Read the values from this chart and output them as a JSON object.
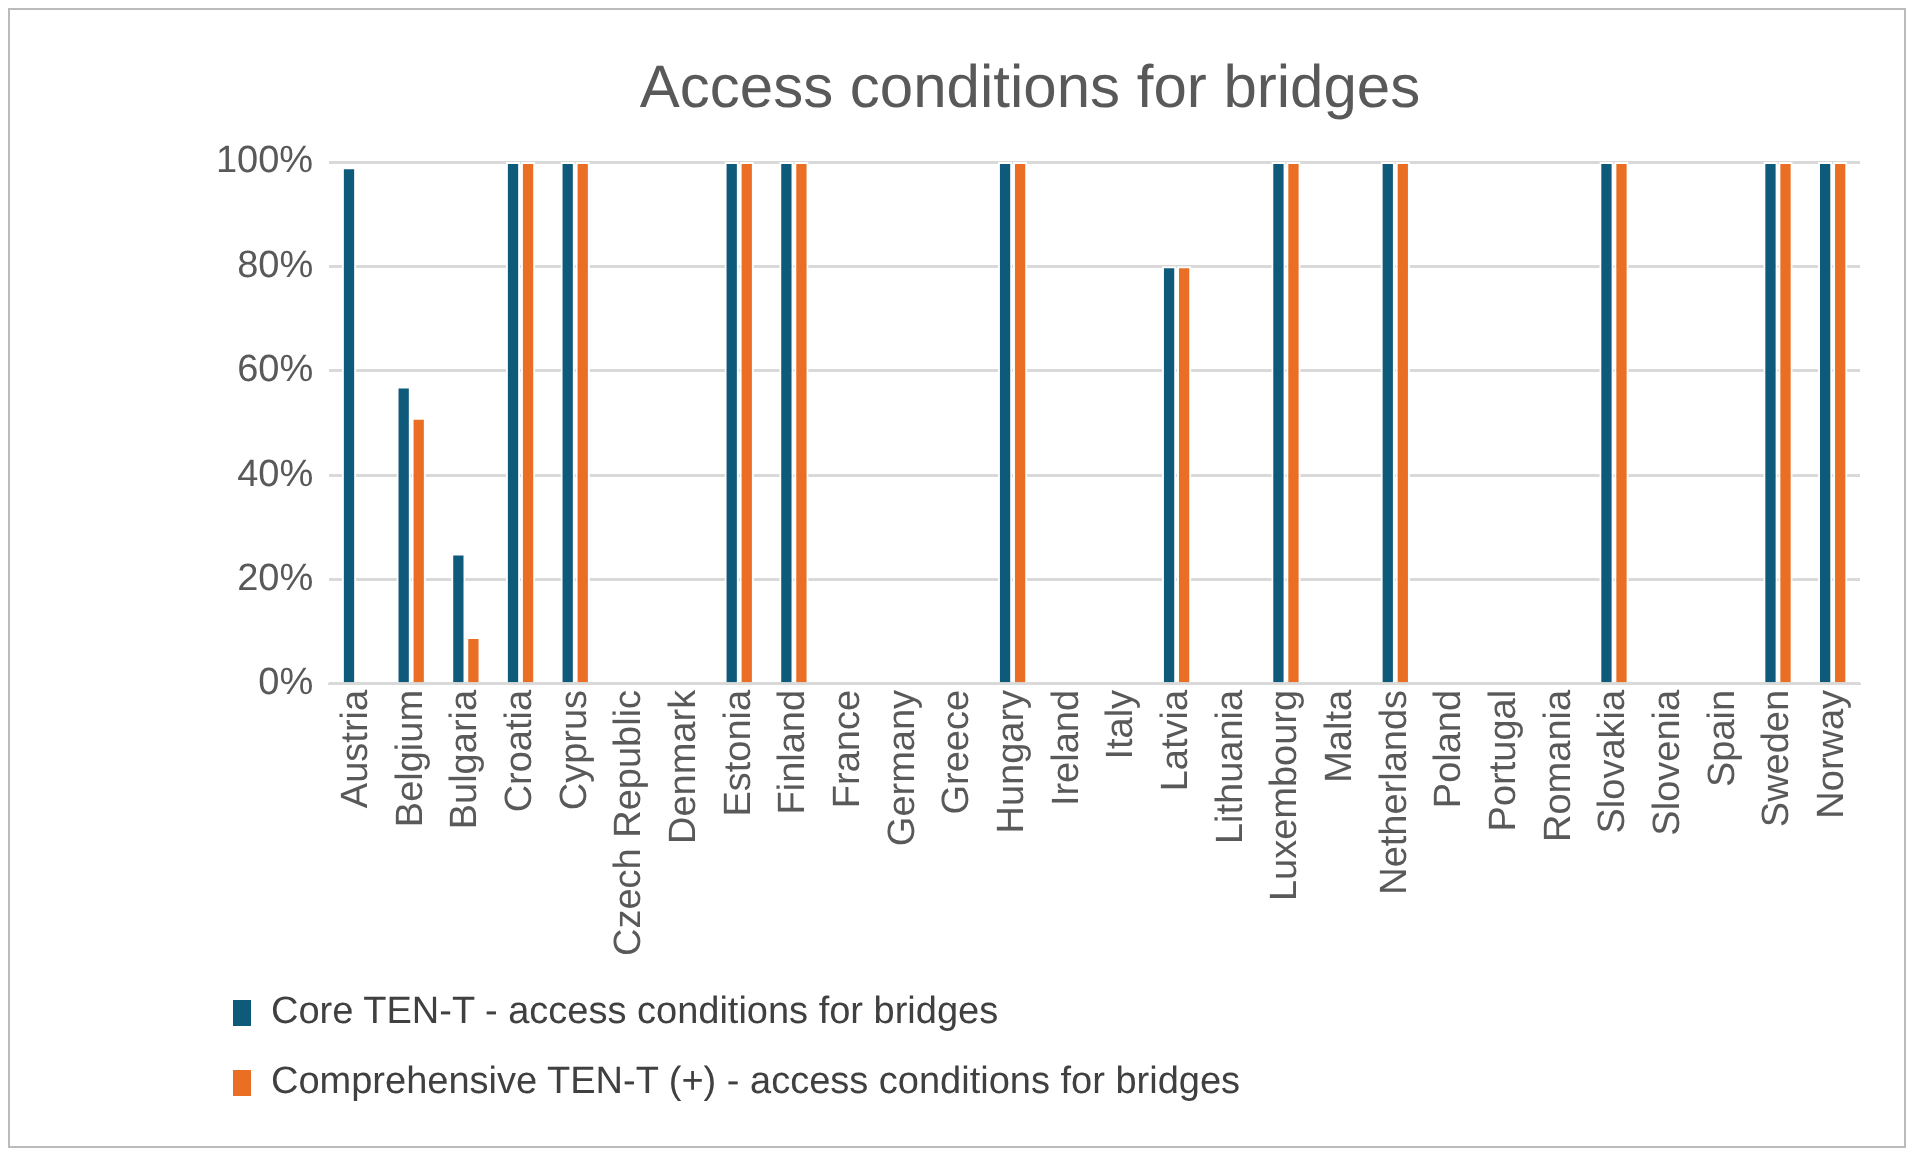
{
  "chart_data": {
    "type": "bar",
    "title": "Access conditions for bridges",
    "categories": [
      "Austria",
      "Belgium",
      "Bulgaria",
      "Croatia",
      "Cyprus",
      "Czech Republic",
      "Denmark",
      "Estonia",
      "Finland",
      "France",
      "Germany",
      "Greece",
      "Hungary",
      "Ireland",
      "Italy",
      "Latvia",
      "Lithuania",
      "Luxembourg",
      "Malta",
      "Netherlands",
      "Poland",
      "Portugal",
      "Romania",
      "Slovakia",
      "Slovenia",
      "Spain",
      "Sweden",
      "Norway"
    ],
    "series": [
      {
        "name": "Core TEN-T - access conditions for bridges",
        "color": "#0e5a7a",
        "values": [
          99,
          57,
          25,
          100,
          100,
          0,
          0,
          100,
          100,
          0,
          0,
          0,
          100,
          0,
          0,
          80,
          0,
          100,
          0,
          100,
          0,
          0,
          0,
          100,
          0,
          0,
          100,
          100
        ]
      },
      {
        "name": "Comprehensive TEN-T (+) - access conditions for bridges",
        "color": "#ea6f25",
        "values": [
          0,
          51,
          9,
          100,
          100,
          0,
          0,
          100,
          100,
          0,
          0,
          0,
          100,
          0,
          0,
          80,
          0,
          100,
          0,
          100,
          0,
          0,
          0,
          100,
          0,
          0,
          100,
          100
        ]
      }
    ],
    "ylim": [
      0,
      100
    ],
    "yticks": [
      {
        "value": 0,
        "label": "0%"
      },
      {
        "value": 20,
        "label": "20%"
      },
      {
        "value": 40,
        "label": "40%"
      },
      {
        "value": 60,
        "label": "60%"
      },
      {
        "value": 80,
        "label": "80%"
      },
      {
        "value": 100,
        "label": "100%"
      }
    ],
    "grid": "y",
    "legend": "bottom"
  }
}
